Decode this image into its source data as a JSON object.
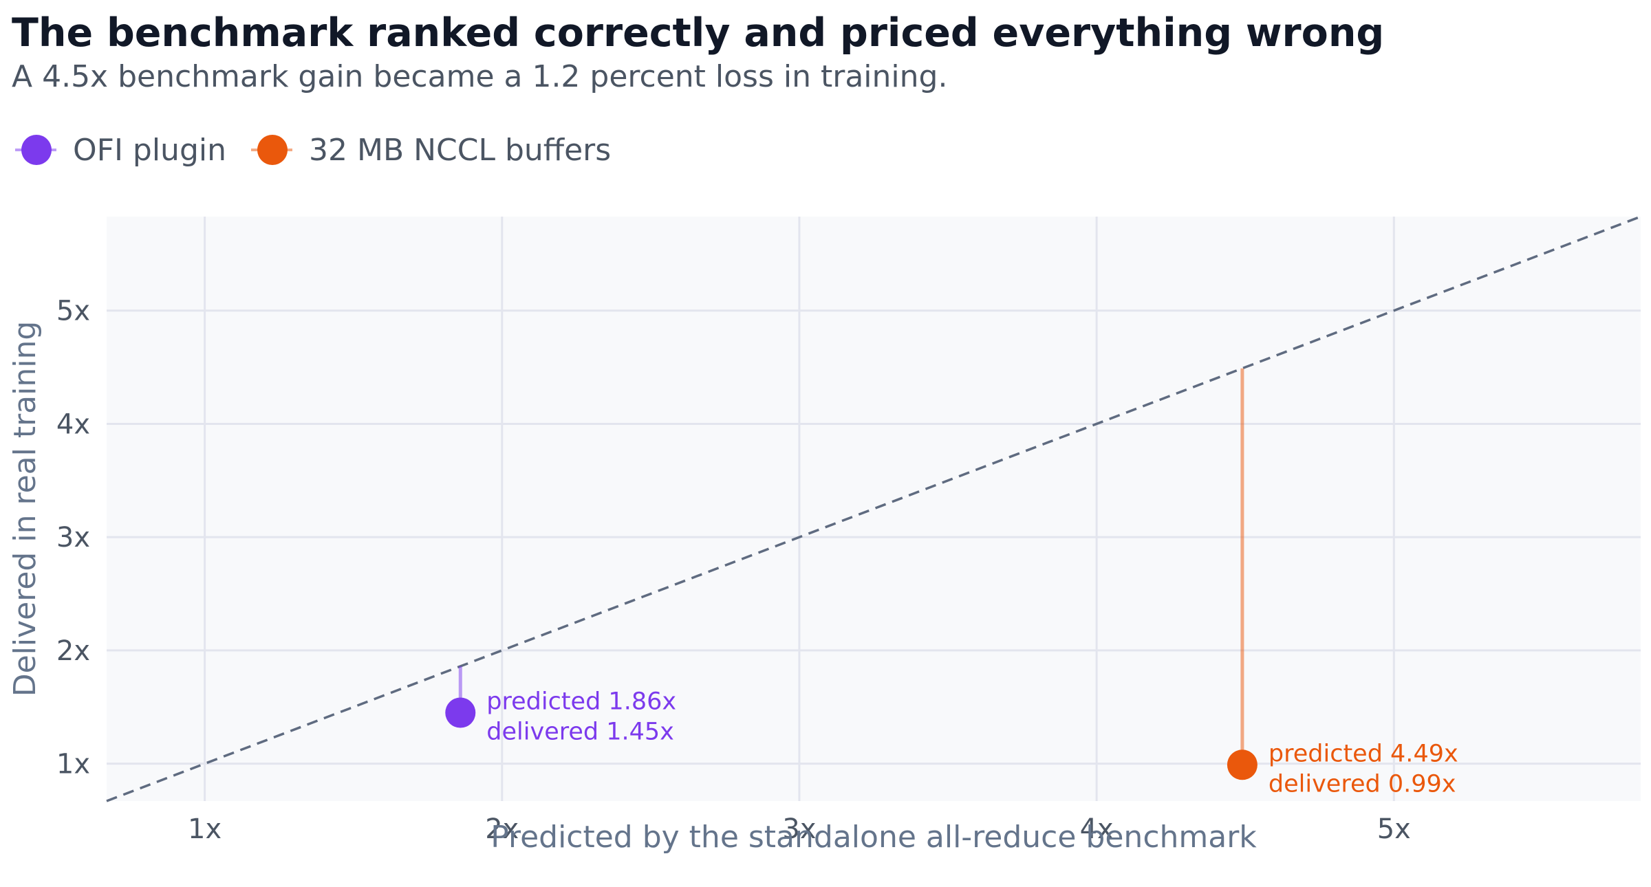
{
  "title": "The benchmark ranked correctly and priced everything wrong",
  "subtitle": "A 4.5x benchmark gain became a 1.2 percent loss in training.",
  "colors": {
    "background": "#ffffff",
    "plot_background": "#f8f9fb",
    "grid": "#e3e5ee",
    "reference_line": "#5f6b80",
    "ofi": "#7c3aed",
    "nccl": "#ea580c"
  },
  "legend": [
    {
      "label": "OFI plugin",
      "color": "#7c3aed"
    },
    {
      "label": "32 MB NCCL buffers",
      "color": "#ea580c"
    }
  ],
  "chart_data": {
    "type": "scatter",
    "title": "The benchmark ranked correctly and priced everything wrong",
    "subtitle": "A 4.5x benchmark gain became a 1.2 percent loss in training.",
    "xlabel": "Predicted by the standalone all-reduce benchmark",
    "ylabel": "Delivered in real training",
    "xlim": [
      0.67,
      5.83
    ],
    "ylim": [
      0.67,
      5.83
    ],
    "xticks": [
      1,
      2,
      3,
      4,
      5
    ],
    "xtick_labels": [
      "1x",
      "2x",
      "3x",
      "4x",
      "5x"
    ],
    "yticks": [
      1,
      2,
      3,
      4,
      5
    ],
    "ytick_labels": [
      "1x",
      "2x",
      "3x",
      "4x",
      "5x"
    ],
    "grid": true,
    "legend_position": "top-left",
    "reference_line": "y = x (dashed)",
    "series": [
      {
        "name": "OFI plugin",
        "color": "#7c3aed",
        "predicted": 1.86,
        "delivered": 1.45,
        "label_lines": [
          "predicted 1.86x",
          "delivered 1.45x"
        ]
      },
      {
        "name": "32 MB NCCL buffers",
        "color": "#ea580c",
        "predicted": 4.49,
        "delivered": 0.99,
        "label_lines": [
          "predicted 4.49x",
          "delivered 0.99x"
        ]
      }
    ]
  }
}
